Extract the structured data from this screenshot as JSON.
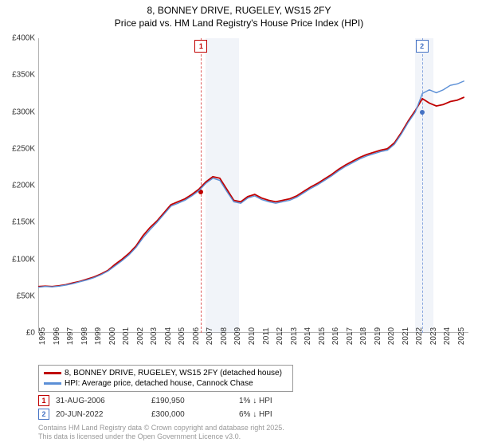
{
  "title": {
    "line1": "8, BONNEY DRIVE, RUGELEY, WS15 2FY",
    "line2": "Price paid vs. HM Land Registry's House Price Index (HPI)"
  },
  "chart": {
    "type": "line",
    "background_color": "#ffffff",
    "grid_color": "#e0e0e0",
    "axis_color": "#333333",
    "title_fontsize": 12,
    "tick_fontsize": 10,
    "x": {
      "min": 1995,
      "max": 2025.8,
      "ticks": [
        1995,
        1996,
        1997,
        1998,
        1999,
        2000,
        2001,
        2002,
        2003,
        2004,
        2005,
        2006,
        2007,
        2008,
        2009,
        2010,
        2011,
        2012,
        2013,
        2014,
        2015,
        2016,
        2017,
        2018,
        2019,
        2020,
        2021,
        2022,
        2023,
        2024,
        2025
      ]
    },
    "y": {
      "min": 0,
      "max": 400000,
      "ticks": [
        0,
        50000,
        100000,
        150000,
        200000,
        250000,
        300000,
        350000,
        400000
      ],
      "tick_labels": [
        "£0",
        "£50K",
        "£100K",
        "£150K",
        "£200K",
        "£250K",
        "£300K",
        "£350K",
        "£400K"
      ]
    },
    "shaded_bands": [
      {
        "x_from": 2007.0,
        "x_to": 2009.4,
        "color": "#c8d4e6",
        "opacity": 0.25
      },
      {
        "x_from": 2022.0,
        "x_to": 2023.3,
        "color": "#c8d4e6",
        "opacity": 0.25
      }
    ],
    "markers": [
      {
        "id": "1",
        "x": 2006.66,
        "y": 190950,
        "color": "#c00000",
        "dotted_color": "#e06060"
      },
      {
        "id": "2",
        "x": 2022.47,
        "y": 300000,
        "color": "#4472c4",
        "dotted_color": "#8aa8e0"
      }
    ],
    "series": [
      {
        "name": "price_paid",
        "label": "8, BONNEY DRIVE, RUGELEY, WS15 2FY (detached house)",
        "color": "#c00000",
        "line_width": 1.8,
        "data": [
          [
            1995.0,
            63000
          ],
          [
            1995.5,
            63500
          ],
          [
            1996.0,
            63000
          ],
          [
            1996.5,
            64000
          ],
          [
            1997.0,
            65500
          ],
          [
            1997.5,
            68000
          ],
          [
            1998.0,
            70000
          ],
          [
            1998.5,
            73000
          ],
          [
            1999.0,
            76000
          ],
          [
            1999.5,
            80000
          ],
          [
            2000.0,
            85000
          ],
          [
            2000.5,
            93000
          ],
          [
            2001.0,
            100000
          ],
          [
            2001.5,
            108000
          ],
          [
            2002.0,
            118000
          ],
          [
            2002.5,
            132000
          ],
          [
            2003.0,
            143000
          ],
          [
            2003.5,
            152000
          ],
          [
            2004.0,
            163000
          ],
          [
            2004.5,
            174000
          ],
          [
            2005.0,
            178000
          ],
          [
            2005.5,
            182000
          ],
          [
            2006.0,
            188000
          ],
          [
            2006.5,
            195000
          ],
          [
            2007.0,
            205000
          ],
          [
            2007.5,
            212000
          ],
          [
            2008.0,
            210000
          ],
          [
            2008.5,
            195000
          ],
          [
            2009.0,
            180000
          ],
          [
            2009.5,
            178000
          ],
          [
            2010.0,
            185000
          ],
          [
            2010.5,
            188000
          ],
          [
            2011.0,
            183000
          ],
          [
            2011.5,
            180000
          ],
          [
            2012.0,
            178000
          ],
          [
            2012.5,
            180000
          ],
          [
            2013.0,
            182000
          ],
          [
            2013.5,
            186000
          ],
          [
            2014.0,
            192000
          ],
          [
            2014.5,
            198000
          ],
          [
            2015.0,
            203000
          ],
          [
            2015.5,
            209000
          ],
          [
            2016.0,
            215000
          ],
          [
            2016.5,
            222000
          ],
          [
            2017.0,
            228000
          ],
          [
            2017.5,
            233000
          ],
          [
            2018.0,
            238000
          ],
          [
            2018.5,
            242000
          ],
          [
            2019.0,
            245000
          ],
          [
            2019.5,
            248000
          ],
          [
            2020.0,
            250000
          ],
          [
            2020.5,
            258000
          ],
          [
            2021.0,
            272000
          ],
          [
            2021.5,
            288000
          ],
          [
            2022.0,
            302000
          ],
          [
            2022.5,
            318000
          ],
          [
            2023.0,
            312000
          ],
          [
            2023.5,
            308000
          ],
          [
            2024.0,
            310000
          ],
          [
            2024.5,
            314000
          ],
          [
            2025.0,
            316000
          ],
          [
            2025.5,
            320000
          ]
        ]
      },
      {
        "name": "hpi",
        "label": "HPI: Average price, detached house, Cannock Chase",
        "color": "#5b8fd6",
        "line_width": 1.4,
        "data": [
          [
            1995.0,
            62000
          ],
          [
            1995.5,
            63000
          ],
          [
            1996.0,
            62500
          ],
          [
            1996.5,
            63500
          ],
          [
            1997.0,
            65000
          ],
          [
            1997.5,
            67000
          ],
          [
            1998.0,
            69500
          ],
          [
            1998.5,
            72000
          ],
          [
            1999.0,
            75000
          ],
          [
            1999.5,
            79000
          ],
          [
            2000.0,
            84000
          ],
          [
            2000.5,
            91000
          ],
          [
            2001.0,
            98000
          ],
          [
            2001.5,
            106000
          ],
          [
            2002.0,
            116000
          ],
          [
            2002.5,
            129000
          ],
          [
            2003.0,
            140000
          ],
          [
            2003.5,
            150000
          ],
          [
            2004.0,
            161000
          ],
          [
            2004.5,
            172000
          ],
          [
            2005.0,
            176000
          ],
          [
            2005.5,
            180000
          ],
          [
            2006.0,
            186000
          ],
          [
            2006.5,
            193000
          ],
          [
            2007.0,
            203000
          ],
          [
            2007.5,
            210000
          ],
          [
            2008.0,
            207000
          ],
          [
            2008.5,
            192000
          ],
          [
            2009.0,
            178000
          ],
          [
            2009.5,
            176000
          ],
          [
            2010.0,
            183000
          ],
          [
            2010.5,
            186000
          ],
          [
            2011.0,
            181000
          ],
          [
            2011.5,
            178000
          ],
          [
            2012.0,
            176000
          ],
          [
            2012.5,
            178000
          ],
          [
            2013.0,
            180000
          ],
          [
            2013.5,
            184000
          ],
          [
            2014.0,
            190000
          ],
          [
            2014.5,
            196000
          ],
          [
            2015.0,
            201000
          ],
          [
            2015.5,
            207000
          ],
          [
            2016.0,
            213000
          ],
          [
            2016.5,
            220000
          ],
          [
            2017.0,
            226000
          ],
          [
            2017.5,
            231000
          ],
          [
            2018.0,
            236000
          ],
          [
            2018.5,
            240000
          ],
          [
            2019.0,
            243000
          ],
          [
            2019.5,
            246000
          ],
          [
            2020.0,
            248000
          ],
          [
            2020.5,
            256000
          ],
          [
            2021.0,
            270000
          ],
          [
            2021.5,
            286000
          ],
          [
            2022.0,
            300000
          ],
          [
            2022.5,
            325000
          ],
          [
            2023.0,
            330000
          ],
          [
            2023.5,
            326000
          ],
          [
            2024.0,
            330000
          ],
          [
            2024.5,
            336000
          ],
          [
            2025.0,
            338000
          ],
          [
            2025.5,
            342000
          ]
        ]
      }
    ]
  },
  "legend": {
    "items": [
      {
        "color": "#c00000",
        "label": "8, BONNEY DRIVE, RUGELEY, WS15 2FY (detached house)"
      },
      {
        "color": "#5b8fd6",
        "label": "HPI: Average price, detached house, Cannock Chase"
      }
    ]
  },
  "sales": [
    {
      "marker": "1",
      "marker_color": "#c00000",
      "date": "31-AUG-2006",
      "price": "£190,950",
      "delta": "1% ↓ HPI"
    },
    {
      "marker": "2",
      "marker_color": "#4472c4",
      "date": "20-JUN-2022",
      "price": "£300,000",
      "delta": "6% ↓ HPI"
    }
  ],
  "attribution": {
    "line1": "Contains HM Land Registry data © Crown copyright and database right 2025.",
    "line2": "This data is licensed under the Open Government Licence v3.0."
  },
  "layout": {
    "sales_col_widths": {
      "date": 120,
      "price": 110,
      "delta": 100
    }
  }
}
